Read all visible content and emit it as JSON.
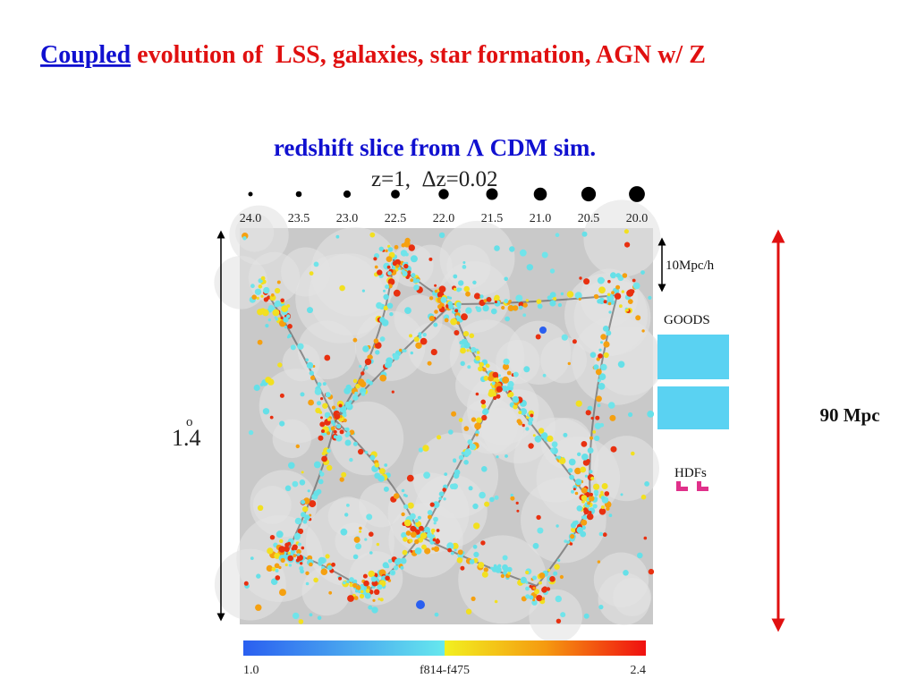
{
  "header": {
    "title_link": "Coupled",
    "title_rest": " evolution of  LSS, galaxies, star formation, AGN w/ Z"
  },
  "figure": {
    "subtitle": "redshift slice from Λ CDM sim.",
    "redshift": "z=1,  Δz=0.02",
    "magnitudes": [
      "24.0",
      "23.5",
      "23.0",
      "22.5",
      "22.0",
      "21.5",
      "21.0",
      "20.5",
      "20.0"
    ],
    "scale_label": "10Mpc/h",
    "goods_label": "GOODS",
    "hdf_label": "HDFs",
    "angle": "1.4",
    "degree": "o",
    "size_label": "90 Mpc",
    "colorbar": {
      "min": "1.0",
      "name": "f814-f475",
      "max": "2.4"
    }
  }
}
